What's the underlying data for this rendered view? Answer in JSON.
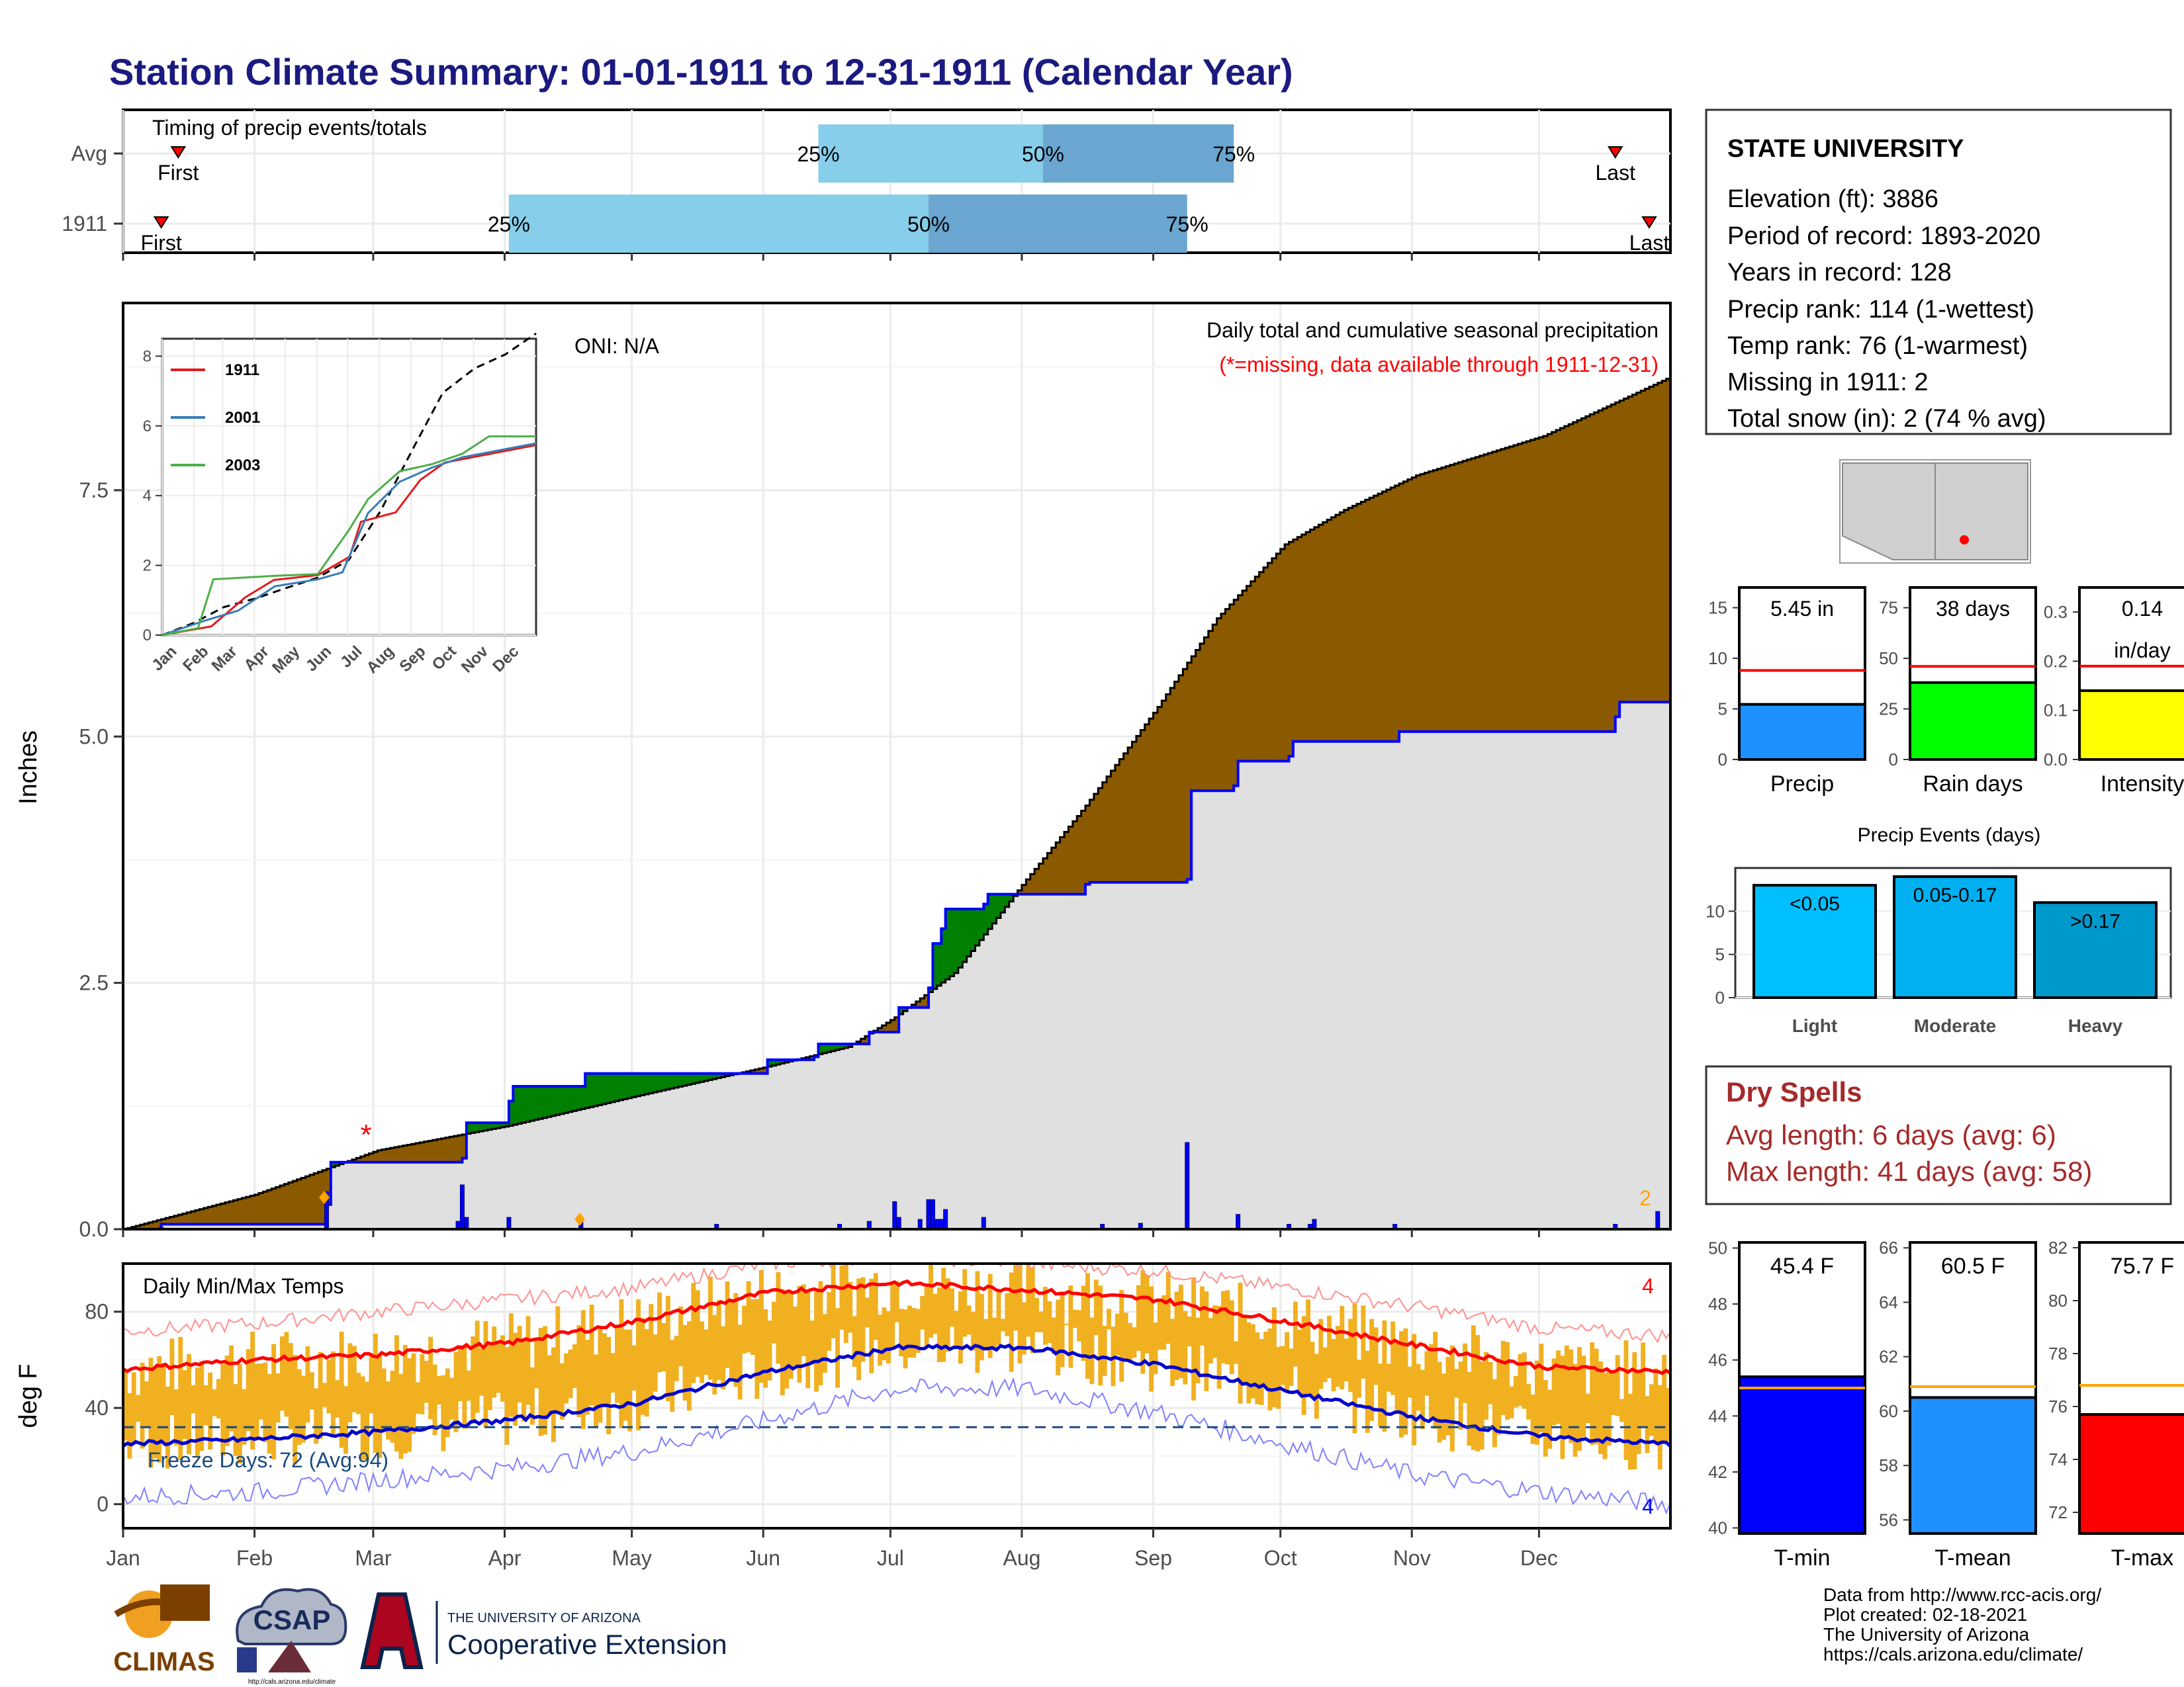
{
  "title": "Station Climate Summary: 01-01-1911 to 12-31-1911 (Calendar Year)",
  "colors": {
    "title": "#1a1a80",
    "cum_brown": "#8b5a00",
    "cum_green": "#008000",
    "avg_fill": "#e0e0e0",
    "bar_blue": "#0000ff",
    "temp_band": "#f0b020",
    "tmax_line": "#ff0000",
    "tmin_line": "#0000cc",
    "timing_light": "#87ceeb",
    "timing_dark": "#6aa6cf",
    "dry_spell": "#a52a2a"
  },
  "timing": {
    "label": "Timing of precip events/totals",
    "rows": [
      {
        "name": "Avg",
        "first": "2020-01-14",
        "p25": "2020-06-13",
        "p50": "2020-08-05",
        "p75": "2020-09-19",
        "last": "2020-12-18"
      },
      {
        "name": "1911",
        "first": "2020-01-10",
        "p25": "2020-04-01",
        "p50": "2020-07-09",
        "p75": "2020-09-08",
        "last": "2020-12-26"
      }
    ],
    "first_label": "First",
    "last_label": "Last",
    "pct_labels": [
      "25%",
      "50%",
      "75%"
    ]
  },
  "precip_panel": {
    "ylabel": "Inches",
    "header": "Daily total and cumulative seasonal precipitation",
    "missing_note": "(*=missing, data available through 1911-12-31)",
    "oni": "ONI: N/A",
    "yticks": [
      "0.0",
      "2.5",
      "5.0",
      "7.5"
    ],
    "corner_count": "2"
  },
  "inset": {
    "legend": [
      "1911",
      "2001",
      "2003"
    ],
    "legend_colors": [
      "#e41a1c",
      "#377eb8",
      "#4daf4a"
    ],
    "yticks": [
      "0",
      "2",
      "4",
      "6",
      "8"
    ],
    "xticks": [
      "Jan",
      "Feb",
      "Mar",
      "Apr",
      "May",
      "Jun",
      "Jul",
      "Aug",
      "Sep",
      "Oct",
      "Nov",
      "Dec"
    ]
  },
  "station": {
    "name": "STATE UNIVERSITY",
    "lines": [
      "Elevation (ft): 3886",
      "Period of record: 1893-2020",
      "Years in record: 128",
      "Precip rank: 114 (1-wettest)",
      "Temp rank: 76 (1-warmest)",
      "Missing in 1911: 2",
      "Total snow (in): 2 (74 % avg)"
    ]
  },
  "summary_bars": [
    {
      "label": "Precip",
      "value": 5.45,
      "avg": 8.8,
      "max": 17,
      "ticks": [
        "0",
        "5",
        "10",
        "15"
      ],
      "tickvals": [
        0,
        5,
        10,
        15
      ],
      "text1": "5.45 in",
      "text2": "",
      "color": "#1e90ff"
    },
    {
      "label": "Rain days",
      "value": 38,
      "avg": 46,
      "max": 85,
      "ticks": [
        "0",
        "25",
        "50",
        "75"
      ],
      "tickvals": [
        0,
        25,
        50,
        75
      ],
      "text1": "38 days",
      "text2": "",
      "color": "#00ff00"
    },
    {
      "label": "Intensity",
      "value": 0.14,
      "avg": 0.19,
      "max": 0.35,
      "ticks": [
        "0.0",
        "0.1",
        "0.2",
        "0.3"
      ],
      "tickvals": [
        0,
        0.1,
        0.2,
        0.3
      ],
      "text1": "0.14",
      "text2": "in/day",
      "color": "#ffff00"
    }
  ],
  "events": {
    "title": "Precip Events (days)",
    "categories": [
      "Light",
      "Moderate",
      "Heavy"
    ],
    "values": [
      13,
      14,
      11
    ],
    "labels": [
      "<0.05",
      "0.05-0.17",
      ">0.17"
    ],
    "colors": [
      "#00bfff",
      "#00b0f0",
      "#0099cc"
    ],
    "yticks": [
      "0",
      "5",
      "10"
    ]
  },
  "dry_spells": {
    "title": "Dry Spells",
    "avg_line": "Avg length: 6 days (avg: 6)",
    "max_line": "Max length: 41 days (avg: 58)"
  },
  "temp_panel": {
    "ylabel": "deg F",
    "label": "Daily Min/Max Temps",
    "freeze_text": "Freeze Days: 72 (Avg:94)",
    "freeze_line": 32,
    "yticks": [
      "0",
      "40",
      "80"
    ],
    "count_hot": "4",
    "count_cold": "4"
  },
  "temp_bars": [
    {
      "label": "T-min",
      "value": 45.4,
      "avg": 45.0,
      "min": 39.8,
      "max": 50.2,
      "ticks": [
        "40",
        "42",
        "44",
        "46",
        "48",
        "50"
      ],
      "tickvals": [
        40,
        42,
        44,
        46,
        48,
        50
      ],
      "text": "45.4 F",
      "color": "#0000ff"
    },
    {
      "label": "T-mean",
      "value": 60.5,
      "avg": 60.9,
      "min": 55.5,
      "max": 66.2,
      "ticks": [
        "56",
        "58",
        "60",
        "62",
        "64",
        "66"
      ],
      "tickvals": [
        56,
        58,
        60,
        62,
        64,
        66
      ],
      "text": "60.5 F",
      "color": "#1e90ff"
    },
    {
      "label": "T-max",
      "value": 75.7,
      "avg": 76.8,
      "min": 71.2,
      "max": 82.2,
      "ticks": [
        "72",
        "74",
        "76",
        "78",
        "80",
        "82"
      ],
      "tickvals": [
        72,
        74,
        76,
        78,
        80,
        82
      ],
      "text": "75.7 F",
      "color": "#ff0000"
    }
  ],
  "months": [
    "Jan",
    "Feb",
    "Mar",
    "Apr",
    "May",
    "Jun",
    "Jul",
    "Aug",
    "Sep",
    "Oct",
    "Nov",
    "Dec"
  ],
  "credits": [
    "Data from http://www.rcc-acis.org/",
    "Plot created: 02-18-2021",
    "The University of Arizona",
    "https://cals.arizona.edu/climate/"
  ],
  "logos": {
    "climas": "CLIMAS",
    "csap": "CSAP",
    "ua_small": "THE UNIVERSITY OF ARIZONA",
    "ua_big": "Cooperative Extension",
    "csap_url": "http://cals.arizona.edu/climate"
  },
  "chart_data": [
    {
      "type": "area",
      "title": "Daily total and cumulative seasonal precipitation",
      "ylabel": "Inches",
      "ylim": [
        0,
        9.4
      ],
      "series": [
        {
          "name": "cumulative average",
          "x": [
            "2020-01-01",
            "2020-02-01",
            "2020-03-01",
            "2020-04-01",
            "2020-05-01",
            "2020-06-01",
            "2020-06-20",
            "2020-07-01",
            "2020-07-15",
            "2020-08-01",
            "2020-08-15",
            "2020-09-01",
            "2020-09-15",
            "2020-10-01",
            "2020-10-15",
            "2020-11-01",
            "2020-12-01",
            "2020-12-31"
          ],
          "values": [
            0,
            0.35,
            0.8,
            1.05,
            1.35,
            1.65,
            1.85,
            2.15,
            2.6,
            3.55,
            4.3,
            5.3,
            6.2,
            6.95,
            7.3,
            7.65,
            8.05,
            8.65
          ]
        },
        {
          "name": "cumulative 1911",
          "x": [
            "2020-01-01",
            "2020-01-10",
            "2020-01-25",
            "2020-02-18",
            "2020-02-19",
            "2020-03-21",
            "2020-03-22",
            "2020-04-01",
            "2020-04-02",
            "2020-04-18",
            "2020-04-19",
            "2020-06-01",
            "2020-06-12",
            "2020-06-13",
            "2020-06-25",
            "2020-07-02",
            "2020-07-09",
            "2020-07-10",
            "2020-07-12",
            "2020-07-13",
            "2020-07-22",
            "2020-07-23",
            "2020-08-15",
            "2020-08-16",
            "2020-09-08",
            "2020-09-09",
            "2020-09-19",
            "2020-09-20",
            "2020-10-02",
            "2020-10-03",
            "2020-10-27",
            "2020-10-28",
            "2020-12-18",
            "2020-12-19",
            "2020-12-31"
          ],
          "values": [
            0,
            0.05,
            0.05,
            0.25,
            0.68,
            0.72,
            1.08,
            1.3,
            1.45,
            1.45,
            1.58,
            1.72,
            1.75,
            1.88,
            2.0,
            2.25,
            2.45,
            2.9,
            3.05,
            3.25,
            3.3,
            3.4,
            3.5,
            3.52,
            3.55,
            4.45,
            4.5,
            4.75,
            4.8,
            4.95,
            4.95,
            5.05,
            5.2,
            5.35,
            5.45
          ]
        },
        {
          "name": "daily 1911",
          "x": [
            "2020-01-10",
            "2020-02-18",
            "2020-03-20",
            "2020-03-21",
            "2020-03-22",
            "2020-04-01",
            "2020-04-18",
            "2020-05-20",
            "2020-06-18",
            "2020-06-25",
            "2020-07-01",
            "2020-07-02",
            "2020-07-07",
            "2020-07-09",
            "2020-07-10",
            "2020-07-11",
            "2020-07-12",
            "2020-07-13",
            "2020-07-22",
            "2020-08-19",
            "2020-08-28",
            "2020-09-08",
            "2020-09-20",
            "2020-10-02",
            "2020-10: 07",
            "2020-10-08",
            "2020-10-27",
            "2020-12-18",
            "2020-12-28"
          ],
          "values": [
            0.02,
            0.38,
            0.08,
            0.45,
            0.12,
            0.12,
            0.1,
            0.05,
            0.05,
            0.08,
            0.28,
            0.12,
            0.1,
            0.3,
            0.3,
            0.1,
            0.1,
            0.2,
            0.12,
            0.05,
            0.06,
            0.88,
            0.15,
            0.05,
            0.05,
            0.1,
            0.05,
            0.05,
            0.18
          ]
        }
      ]
    },
    {
      "type": "line",
      "title": "",
      "ylim": [
        0,
        8.5
      ],
      "series": [
        {
          "name": "",
          "x": [
            "2020-01-01",
            "2020-02-01",
            "2020-03-01",
            "2020-04-01",
            "2020-05-01",
            "2020-06-01",
            "2020-07-01",
            "2020-08-01",
            "2020-09-01",
            "2020-10-01",
            "2020-11-01",
            "2020-12-01",
            "2020-12-31"
          ],
          "values": [
            0,
            0.35,
            0.8,
            1.05,
            1.35,
            1.65,
            2.15,
            3.55,
            5.3,
            6.95,
            7.65,
            8.05,
            8.65
          ]
        },
        {
          "name": "1911",
          "x": [
            "2020-01-01",
            "2020-02-18",
            "2020-03-22",
            "2020-04-19",
            "2020-06-01",
            "2020-07-02",
            "2020-07-13",
            "2020-08-16",
            "2020-09-09",
            "2020-10-03",
            "2020-12-31"
          ],
          "values": [
            0,
            0.25,
            1.08,
            1.58,
            1.72,
            2.25,
            3.25,
            3.52,
            4.45,
            4.95,
            5.45
          ]
        },
        {
          "name": "2001",
          "x": [
            "2020-01-01",
            "2020-02-10",
            "2020-03-15",
            "2020-04-20",
            "2020-06-01",
            "2020-06-25",
            "2020-07-20",
            "2020-08-20",
            "2020-09-20",
            "2020-10-20",
            "2020-12-31"
          ],
          "values": [
            0,
            0.4,
            0.7,
            1.4,
            1.6,
            1.8,
            3.5,
            4.4,
            4.8,
            5.1,
            5.5
          ]
        },
        {
          "name": "2003",
          "x": [
            "2020-01-01",
            "2020-02-05",
            "2020-02-20",
            "2020-04-20",
            "2020-06-01",
            "2020-07-01",
            "2020-07-20",
            "2020-08-20",
            "2020-09-20",
            "2020-10-20",
            "2020-11-15",
            "2020-12-31"
          ],
          "values": [
            0,
            0.2,
            1.6,
            1.7,
            1.75,
            3.0,
            3.9,
            4.7,
            4.9,
            5.2,
            5.7,
            5.7
          ]
        }
      ]
    },
    {
      "type": "line",
      "title": "Daily Min/Max Temps",
      "ylabel": "deg F",
      "ylim": [
        -10,
        100
      ],
      "series": [
        {
          "name": "",
          "x": [
            "2020-01-01",
            "2020-02-01",
            "2020-03-01",
            "2020-04-01",
            "2020-05-01",
            "2020-06-01",
            "2020-07-01",
            "2020-08-01",
            "2020-09-01",
            "2020-10-01",
            "2020-11-01",
            "2020-12-01",
            "2020-12-31"
          ],
          "values": [
            56,
            60,
            62,
            67,
            76,
            88,
            92,
            89,
            85,
            76,
            66,
            57,
            55
          ]
        },
        {
          "name": "",
          "x": [
            "2020-01-01",
            "2020-02-01",
            "2020-03-01",
            "2020-04-01",
            "2020-05-01",
            "2020-06-01",
            "2020-07-01",
            "2020-08-01",
            "2020-09-01",
            "2020-10-01",
            "2020-11-01",
            "2020-12-01",
            "2020-12-31"
          ],
          "values": [
            25,
            27,
            30,
            35,
            42,
            55,
            65,
            65,
            58,
            47,
            36,
            28,
            25
          ]
        },
        {
          "name": "",
          "x": [
            "2020-01-01",
            "2020-02-01",
            "2020-03-01",
            "2020-04-01",
            "2020-05-01",
            "2020-06-01",
            "2020-07-01",
            "2020-08-01",
            "2020-09-01",
            "2020-10-01",
            "2020-11-01",
            "2020-12-01",
            "2020-12-31"
          ],
          "values": [
            72,
            75,
            80,
            85,
            90,
            100,
            103,
            100,
            97,
            90,
            82,
            73,
            70
          ]
        },
        {
          "name": "",
          "x": [
            "2020-01-01",
            "2020-02-01",
            "2020-03-01",
            "2020-04-01",
            "2020-05-01",
            "2020-06-01",
            "2020-07-01",
            "2020-08-01",
            "2020-09-01",
            "2020-10-01",
            "2020-11-01",
            "2020-12-01",
            "2020-12-31"
          ],
          "values": [
            3,
            5,
            10,
            15,
            22,
            35,
            48,
            48,
            38,
            25,
            12,
            5,
            0
          ]
        }
      ]
    }
  ]
}
